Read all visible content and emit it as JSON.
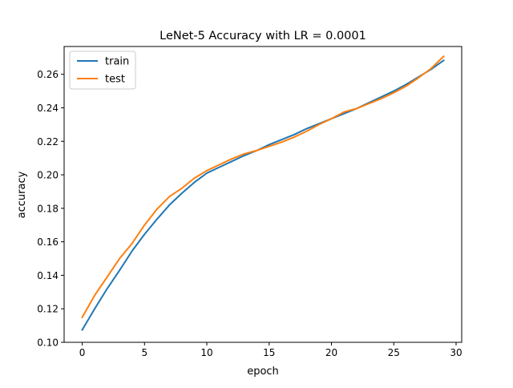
{
  "chart_data": {
    "type": "line",
    "title": "LeNet-5 Accuracy with LR = 0.0001",
    "xlabel": "epoch",
    "ylabel": "accuracy",
    "xlim": [
      -1.45,
      30.45
    ],
    "ylim": [
      0.1,
      0.2766
    ],
    "xticks": [
      0,
      5,
      10,
      15,
      20,
      25,
      30
    ],
    "yticks": [
      0.1,
      0.12,
      0.14,
      0.16,
      0.18,
      0.2,
      0.22,
      0.24,
      0.26
    ],
    "ytick_labels": [
      "0.10",
      "0.12",
      "0.14",
      "0.16",
      "0.18",
      "0.20",
      "0.22",
      "0.24",
      "0.26"
    ],
    "legend_position": "upper-left",
    "grid": false,
    "x": [
      0,
      1,
      2,
      3,
      4,
      5,
      6,
      7,
      8,
      9,
      10,
      11,
      12,
      13,
      14,
      15,
      16,
      17,
      18,
      19,
      20,
      21,
      22,
      23,
      24,
      25,
      26,
      27,
      28,
      29
    ],
    "series": [
      {
        "name": "train",
        "color": "#1f77b4",
        "values": [
          0.1074,
          0.12,
          0.132,
          0.143,
          0.1545,
          0.1645,
          0.1735,
          0.182,
          0.189,
          0.1955,
          0.201,
          0.2045,
          0.208,
          0.2115,
          0.2145,
          0.218,
          0.221,
          0.224,
          0.2275,
          0.2305,
          0.2335,
          0.2365,
          0.2395,
          0.243,
          0.2465,
          0.25,
          0.254,
          0.2585,
          0.263,
          0.2683
        ]
      },
      {
        "name": "test",
        "color": "#ff7f0e",
        "values": [
          0.1149,
          0.128,
          0.139,
          0.15,
          0.159,
          0.17,
          0.1795,
          0.187,
          0.192,
          0.198,
          0.2025,
          0.206,
          0.2095,
          0.2125,
          0.2145,
          0.217,
          0.2195,
          0.2225,
          0.226,
          0.23,
          0.2335,
          0.2375,
          0.2395,
          0.2425,
          0.2455,
          0.249,
          0.253,
          0.258,
          0.2635,
          0.2707
        ]
      }
    ]
  }
}
